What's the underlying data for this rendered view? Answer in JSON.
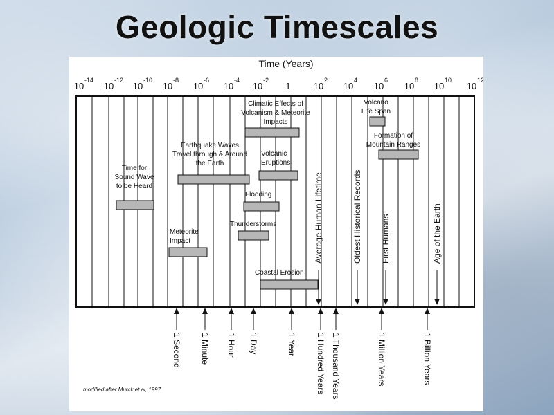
{
  "title": "Geologic Timescales",
  "axis_title": "Time (Years)",
  "exponent_base": "10",
  "exponents": [
    "-14",
    "-12",
    "-10",
    "-8",
    "-6",
    "-4",
    "-2",
    "0",
    "2",
    "4",
    "6",
    "8",
    "10",
    "12"
  ],
  "tick_one_label": "1",
  "credit": "modified after Murck et al, 1997",
  "events": [
    {
      "id": "sound-wave",
      "lines": [
        "Time for",
        "Sound Wave",
        "to be Heard"
      ]
    },
    {
      "id": "earthquake-waves",
      "lines": [
        "Earthquake Waves",
        "Travel through & Around",
        "the Earth"
      ]
    },
    {
      "id": "climatic-effects",
      "lines": [
        "Climatic Effects of",
        "Volcanism & Meteorite",
        "Impacts"
      ]
    },
    {
      "id": "volcano-life-span",
      "lines": [
        "Volcano",
        "Life Span"
      ]
    },
    {
      "id": "mountain-ranges",
      "lines": [
        "Formation of",
        "Mountain Ranges"
      ]
    },
    {
      "id": "volcanic-eruptions",
      "lines": [
        "Volcanic",
        "Eruptions"
      ]
    },
    {
      "id": "flooding",
      "lines": [
        "Flooding"
      ]
    },
    {
      "id": "thunderstorms",
      "lines": [
        "Thunderstorms"
      ]
    },
    {
      "id": "meteorite-impact",
      "lines": [
        "Meteorite",
        "Impact"
      ]
    },
    {
      "id": "coastal-erosion",
      "lines": [
        "Coastal Erosion"
      ]
    }
  ],
  "markers": [
    {
      "id": "human-lifetime",
      "label": "Average Human Lifetime"
    },
    {
      "id": "historical-records",
      "label": "Oldest Historical Records"
    },
    {
      "id": "first-humans",
      "label": "First Humans"
    },
    {
      "id": "age-of-earth",
      "label": "Age of the Earth"
    }
  ],
  "time_units": [
    "1 Second",
    "1 Minute",
    "1 Hour",
    "1 Day",
    "1 Year",
    "1 Hundred Years",
    "1 Thousand Years",
    "1 Million Years",
    "1 Billion Years"
  ]
}
